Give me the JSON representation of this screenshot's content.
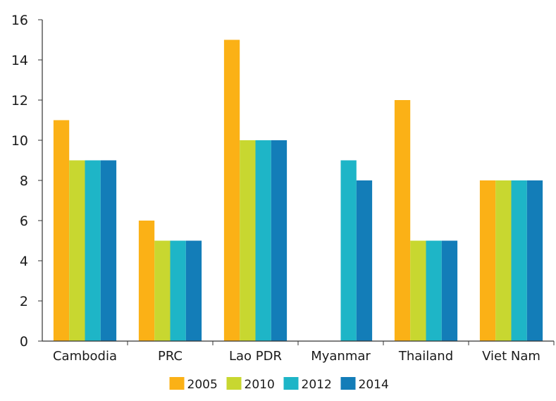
{
  "chart_data": {
    "type": "bar",
    "title": "",
    "xlabel": "",
    "ylabel": "",
    "categories": [
      "Cambodia",
      "PRC",
      "Lao PDR",
      "Myanmar",
      "Thailand",
      "Viet Nam"
    ],
    "series": [
      {
        "name": "2005",
        "color": "#FBB116",
        "values": [
          11,
          6,
          15,
          null,
          12,
          8
        ]
      },
      {
        "name": "2010",
        "color": "#C8D730",
        "values": [
          9,
          5,
          10,
          null,
          5,
          8
        ]
      },
      {
        "name": "2012",
        "color": "#1EB5C7",
        "values": [
          9,
          5,
          10,
          9,
          5,
          8
        ]
      },
      {
        "name": "2014",
        "color": "#137DB8",
        "values": [
          9,
          5,
          10,
          8,
          5,
          8
        ]
      }
    ],
    "ylim": [
      0,
      16
    ],
    "yticks": [
      0,
      2,
      4,
      6,
      8,
      10,
      12,
      14,
      16
    ],
    "grid": false,
    "legend_position": "bottom-center"
  }
}
